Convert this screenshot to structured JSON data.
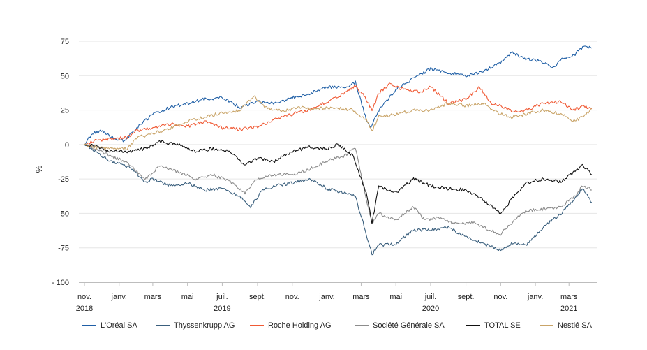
{
  "chart_data": {
    "type": "line",
    "ylabel": "%",
    "ylim": [
      -100,
      75
    ],
    "yticks": [
      75,
      50,
      25,
      0,
      -25,
      -50,
      -75,
      -100
    ],
    "ytick_labels": [
      "75",
      "50",
      "25",
      "0",
      "-25",
      "-50",
      "-75",
      "- 100"
    ],
    "grid": true,
    "legend_position": "bottom",
    "x_range": [
      "2018-11-01",
      "2021-04-20"
    ],
    "xticks": [
      {
        "date": "2018-11-01",
        "label": "nov.",
        "year": "2018"
      },
      {
        "date": "2019-01-01",
        "label": "janv.",
        "year": ""
      },
      {
        "date": "2019-03-01",
        "label": "mars",
        "year": ""
      },
      {
        "date": "2019-05-01",
        "label": "mai",
        "year": ""
      },
      {
        "date": "2019-07-01",
        "label": "juil.",
        "year": "2019"
      },
      {
        "date": "2019-09-01",
        "label": "sept.",
        "year": ""
      },
      {
        "date": "2019-11-01",
        "label": "nov.",
        "year": ""
      },
      {
        "date": "2020-01-01",
        "label": "janv.",
        "year": ""
      },
      {
        "date": "2020-03-01",
        "label": "mars",
        "year": ""
      },
      {
        "date": "2020-05-01",
        "label": "mai",
        "year": ""
      },
      {
        "date": "2020-07-01",
        "label": "juil.",
        "year": "2020"
      },
      {
        "date": "2020-09-01",
        "label": "sept.",
        "year": ""
      },
      {
        "date": "2020-11-01",
        "label": "nov.",
        "year": ""
      },
      {
        "date": "2021-01-01",
        "label": "janv.",
        "year": ""
      },
      {
        "date": "2021-03-01",
        "label": "mars",
        "year": "2021"
      }
    ],
    "series": [
      {
        "name": "L'Oréal SA",
        "color": "#1f5fa6",
        "points": [
          [
            "2018-11-01",
            0
          ],
          [
            "2018-11-15",
            8
          ],
          [
            "2018-12-01",
            10
          ],
          [
            "2018-12-20",
            5
          ],
          [
            "2019-01-10",
            3
          ],
          [
            "2019-02-01",
            12
          ],
          [
            "2019-03-01",
            22
          ],
          [
            "2019-04-01",
            27
          ],
          [
            "2019-05-01",
            30
          ],
          [
            "2019-06-01",
            33
          ],
          [
            "2019-07-01",
            34
          ],
          [
            "2019-08-01",
            27
          ],
          [
            "2019-09-01",
            31
          ],
          [
            "2019-10-01",
            30
          ],
          [
            "2019-11-01",
            34
          ],
          [
            "2019-12-01",
            37
          ],
          [
            "2020-01-01",
            42
          ],
          [
            "2020-02-01",
            41
          ],
          [
            "2020-02-20",
            45
          ],
          [
            "2020-03-10",
            18
          ],
          [
            "2020-03-18",
            12
          ],
          [
            "2020-04-01",
            25
          ],
          [
            "2020-05-01",
            40
          ],
          [
            "2020-06-01",
            48
          ],
          [
            "2020-07-01",
            55
          ],
          [
            "2020-08-01",
            52
          ],
          [
            "2020-09-01",
            50
          ],
          [
            "2020-10-01",
            53
          ],
          [
            "2020-11-01",
            60
          ],
          [
            "2020-11-20",
            67
          ],
          [
            "2020-12-15",
            62
          ],
          [
            "2021-01-15",
            60
          ],
          [
            "2021-02-01",
            56
          ],
          [
            "2021-02-20",
            63
          ],
          [
            "2021-03-10",
            65
          ],
          [
            "2021-03-25",
            71
          ],
          [
            "2021-04-10",
            70
          ]
        ]
      },
      {
        "name": "Thyssenkrupp AG",
        "color": "#3a5f7d",
        "points": [
          [
            "2018-11-01",
            0
          ],
          [
            "2018-11-20",
            -5
          ],
          [
            "2018-12-15",
            -12
          ],
          [
            "2019-01-10",
            -15
          ],
          [
            "2019-01-25",
            -18
          ],
          [
            "2019-02-15",
            -28
          ],
          [
            "2019-03-01",
            -25
          ],
          [
            "2019-04-01",
            -30
          ],
          [
            "2019-05-01",
            -28
          ],
          [
            "2019-06-01",
            -33
          ],
          [
            "2019-07-01",
            -32
          ],
          [
            "2019-08-01",
            -38
          ],
          [
            "2019-08-20",
            -45
          ],
          [
            "2019-09-10",
            -33
          ],
          [
            "2019-10-01",
            -30
          ],
          [
            "2019-11-01",
            -28
          ],
          [
            "2019-12-01",
            -25
          ],
          [
            "2020-01-01",
            -32
          ],
          [
            "2020-02-01",
            -35
          ],
          [
            "2020-02-20",
            -38
          ],
          [
            "2020-03-10",
            -65
          ],
          [
            "2020-03-20",
            -80
          ],
          [
            "2020-04-01",
            -73
          ],
          [
            "2020-05-01",
            -72
          ],
          [
            "2020-06-01",
            -62
          ],
          [
            "2020-07-01",
            -62
          ],
          [
            "2020-08-01",
            -60
          ],
          [
            "2020-09-01",
            -67
          ],
          [
            "2020-10-01",
            -72
          ],
          [
            "2020-11-01",
            -77
          ],
          [
            "2020-11-20",
            -72
          ],
          [
            "2020-12-15",
            -73
          ],
          [
            "2021-01-15",
            -60
          ],
          [
            "2021-02-15",
            -50
          ],
          [
            "2021-03-10",
            -40
          ],
          [
            "2021-03-25",
            -32
          ],
          [
            "2021-04-10",
            -42
          ]
        ]
      },
      {
        "name": "Roche Holding AG",
        "color": "#f05a35",
        "points": [
          [
            "2018-11-01",
            0
          ],
          [
            "2018-11-20",
            3
          ],
          [
            "2018-12-15",
            4
          ],
          [
            "2019-01-15",
            5
          ],
          [
            "2019-02-01",
            10
          ],
          [
            "2019-03-01",
            12
          ],
          [
            "2019-04-01",
            15
          ],
          [
            "2019-05-01",
            13
          ],
          [
            "2019-06-01",
            17
          ],
          [
            "2019-07-01",
            12
          ],
          [
            "2019-08-01",
            11
          ],
          [
            "2019-09-01",
            13
          ],
          [
            "2019-10-01",
            18
          ],
          [
            "2019-11-01",
            22
          ],
          [
            "2019-12-01",
            25
          ],
          [
            "2020-01-01",
            31
          ],
          [
            "2020-02-01",
            37
          ],
          [
            "2020-02-20",
            43
          ],
          [
            "2020-03-10",
            33
          ],
          [
            "2020-03-20",
            25
          ],
          [
            "2020-04-01",
            37
          ],
          [
            "2020-04-20",
            44
          ],
          [
            "2020-05-15",
            40
          ],
          [
            "2020-06-15",
            38
          ],
          [
            "2020-07-01",
            42
          ],
          [
            "2020-08-01",
            30
          ],
          [
            "2020-09-01",
            33
          ],
          [
            "2020-09-25",
            42
          ],
          [
            "2020-10-15",
            30
          ],
          [
            "2020-11-01",
            28
          ],
          [
            "2020-11-20",
            24
          ],
          [
            "2020-12-15",
            25
          ],
          [
            "2021-01-15",
            30
          ],
          [
            "2021-02-15",
            31
          ],
          [
            "2021-03-10",
            25
          ],
          [
            "2021-03-25",
            28
          ],
          [
            "2021-04-10",
            26
          ]
        ]
      },
      {
        "name": "Société Générale SA",
        "color": "#8c8c8c",
        "points": [
          [
            "2018-11-01",
            0
          ],
          [
            "2018-11-20",
            -3
          ],
          [
            "2018-12-15",
            -8
          ],
          [
            "2019-01-15",
            -13
          ],
          [
            "2019-02-15",
            -25
          ],
          [
            "2019-03-15",
            -15
          ],
          [
            "2019-04-15",
            -20
          ],
          [
            "2019-05-15",
            -25
          ],
          [
            "2019-06-15",
            -22
          ],
          [
            "2019-07-15",
            -27
          ],
          [
            "2019-08-10",
            -35
          ],
          [
            "2019-09-01",
            -25
          ],
          [
            "2019-10-01",
            -22
          ],
          [
            "2019-11-01",
            -22
          ],
          [
            "2019-12-01",
            -18
          ],
          [
            "2020-01-01",
            -12
          ],
          [
            "2020-02-01",
            -8
          ],
          [
            "2020-02-20",
            -2
          ],
          [
            "2020-03-10",
            -40
          ],
          [
            "2020-03-20",
            -57
          ],
          [
            "2020-04-01",
            -50
          ],
          [
            "2020-05-01",
            -55
          ],
          [
            "2020-06-01",
            -45
          ],
          [
            "2020-06-20",
            -55
          ],
          [
            "2020-07-15",
            -53
          ],
          [
            "2020-08-15",
            -58
          ],
          [
            "2020-09-15",
            -57
          ],
          [
            "2020-10-01",
            -60
          ],
          [
            "2020-11-01",
            -65
          ],
          [
            "2020-11-20",
            -57
          ],
          [
            "2020-12-15",
            -48
          ],
          [
            "2021-01-15",
            -47
          ],
          [
            "2021-02-15",
            -45
          ],
          [
            "2021-03-10",
            -38
          ],
          [
            "2021-03-25",
            -30
          ],
          [
            "2021-04-10",
            -33
          ]
        ]
      },
      {
        "name": "TOTAL SE",
        "color": "#111111",
        "points": [
          [
            "2018-11-01",
            0
          ],
          [
            "2018-11-20",
            -1
          ],
          [
            "2018-12-15",
            -5
          ],
          [
            "2019-01-15",
            -5
          ],
          [
            "2019-02-15",
            -3
          ],
          [
            "2019-03-15",
            2
          ],
          [
            "2019-04-15",
            0
          ],
          [
            "2019-05-15",
            -5
          ],
          [
            "2019-06-15",
            -3
          ],
          [
            "2019-07-15",
            -5
          ],
          [
            "2019-08-10",
            -15
          ],
          [
            "2019-09-01",
            -10
          ],
          [
            "2019-10-01",
            -12
          ],
          [
            "2019-11-01",
            -5
          ],
          [
            "2019-12-01",
            -2
          ],
          [
            "2020-01-01",
            -3
          ],
          [
            "2020-01-20",
            0
          ],
          [
            "2020-02-15",
            -8
          ],
          [
            "2020-03-10",
            -35
          ],
          [
            "2020-03-20",
            -57
          ],
          [
            "2020-04-01",
            -30
          ],
          [
            "2020-05-01",
            -35
          ],
          [
            "2020-06-01",
            -25
          ],
          [
            "2020-07-01",
            -30
          ],
          [
            "2020-08-01",
            -32
          ],
          [
            "2020-09-01",
            -33
          ],
          [
            "2020-10-01",
            -40
          ],
          [
            "2020-11-01",
            -50
          ],
          [
            "2020-11-20",
            -40
          ],
          [
            "2020-12-15",
            -28
          ],
          [
            "2021-01-15",
            -25
          ],
          [
            "2021-02-15",
            -27
          ],
          [
            "2021-03-10",
            -20
          ],
          [
            "2021-03-25",
            -15
          ],
          [
            "2021-04-10",
            -22
          ]
        ]
      },
      {
        "name": "Nestlé SA",
        "color": "#c9a468",
        "points": [
          [
            "2018-11-01",
            0
          ],
          [
            "2018-11-20",
            -2
          ],
          [
            "2018-12-15",
            -3
          ],
          [
            "2019-01-15",
            -3
          ],
          [
            "2019-02-01",
            5
          ],
          [
            "2019-03-01",
            8
          ],
          [
            "2019-04-01",
            12
          ],
          [
            "2019-05-01",
            17
          ],
          [
            "2019-06-01",
            20
          ],
          [
            "2019-07-01",
            23
          ],
          [
            "2019-08-01",
            25
          ],
          [
            "2019-08-25",
            35
          ],
          [
            "2019-09-15",
            27
          ],
          [
            "2019-10-15",
            24
          ],
          [
            "2019-11-15",
            27
          ],
          [
            "2019-12-15",
            26
          ],
          [
            "2020-01-15",
            27
          ],
          [
            "2020-02-15",
            25
          ],
          [
            "2020-03-10",
            18
          ],
          [
            "2020-03-20",
            10
          ],
          [
            "2020-04-01",
            20
          ],
          [
            "2020-05-01",
            22
          ],
          [
            "2020-06-01",
            25
          ],
          [
            "2020-07-01",
            25
          ],
          [
            "2020-08-01",
            30
          ],
          [
            "2020-09-01",
            28
          ],
          [
            "2020-10-01",
            30
          ],
          [
            "2020-11-01",
            22
          ],
          [
            "2020-11-20",
            20
          ],
          [
            "2020-12-15",
            22
          ],
          [
            "2021-01-15",
            25
          ],
          [
            "2021-02-15",
            22
          ],
          [
            "2021-03-10",
            17
          ],
          [
            "2021-03-25",
            20
          ],
          [
            "2021-04-10",
            26
          ]
        ]
      }
    ]
  }
}
